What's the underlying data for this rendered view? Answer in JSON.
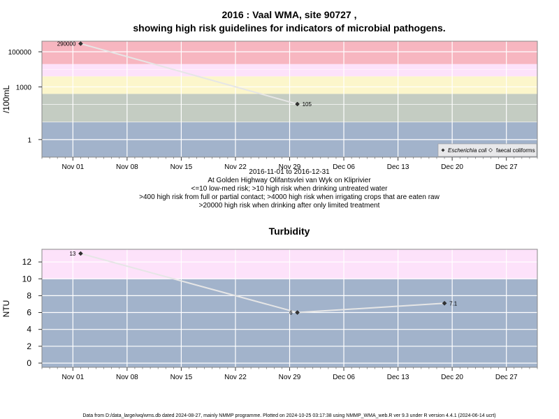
{
  "colors": {
    "red": "#F7B6C0",
    "pink": "#FDE2FA",
    "yellow": "#FCF6CB",
    "grey": "#C4CCC2",
    "blue": "#A2B3CB",
    "line": "#E6E6E6",
    "marker": "#333333"
  },
  "x_ticks": [
    "Nov 01",
    "Nov 08",
    "Nov 15",
    "Nov 22",
    "Nov 29",
    "Dec 06",
    "Dec 13",
    "Dec 20",
    "Dec 27"
  ],
  "top": {
    "title_line1": "2016 : Vaal WMA, site 90727 ,",
    "title_line2": "showing high risk guidelines for indicators of microbial pathogens.",
    "ylabel": "/100mL",
    "caption": [
      "2016-11-01 to 2016-12-31",
      "At Golden Highway Olifantsvlei van Wyk on Kliprivier",
      "<=10 low-med risk; >10 high risk when drinking untreated water",
      ">400 high risk from full or partial contact; >4000 high risk when irrigating crops that are eaten raw",
      ">20000 high risk when drinking after only limited treatment"
    ],
    "legend": {
      "ecoli": "Escherichia coli",
      "faecal": "faecal coliforms"
    }
  },
  "bottom": {
    "title": "Turbidity",
    "ylabel": "NTU"
  },
  "footer": "Data from D:/data_large/wq/wms.db dated 2024-08-27, mainly NMMP programme. Plotted on 2024-10-25 03:17:38 using NMMP_WMA_web.R ver 9.3 under R version 4.4.1 (2024-06-14 ucrt)",
  "chart_data": [
    {
      "type": "line",
      "title": "2016 : Vaal WMA, site 90727 , showing high risk guidelines for indicators of microbial pathogens.",
      "ylabel": "/100mL",
      "yscale": "log",
      "xlim": [
        "2016-10-28",
        "2016-12-31"
      ],
      "ylim": [
        0.1,
        400000
      ],
      "y_ticks": [
        1,
        1000,
        100000
      ],
      "y_tick_labels": [
        "1",
        "1000",
        "100000"
      ],
      "bands": [
        {
          "from": 0.1,
          "to": 10,
          "color": "blue"
        },
        {
          "from": 10,
          "to": 400,
          "color": "grey"
        },
        {
          "from": 400,
          "to": 4000,
          "color": "yellow"
        },
        {
          "from": 4000,
          "to": 20000,
          "color": "pink"
        },
        {
          "from": 20000,
          "to": 400000,
          "color": "red"
        }
      ],
      "series": [
        {
          "name": "Escherichia coli",
          "x": [
            "2016-11-02",
            "2016-11-30"
          ],
          "y": [
            290000,
            105
          ],
          "labels": [
            "290000",
            "105"
          ]
        }
      ],
      "legend_position": "bottom-right"
    },
    {
      "type": "line",
      "title": "Turbidity",
      "ylabel": "NTU",
      "xlim": [
        "2016-10-28",
        "2016-12-31"
      ],
      "ylim": [
        -0.5,
        13.5
      ],
      "y_ticks": [
        0,
        2,
        4,
        6,
        8,
        10,
        12
      ],
      "bands": [
        {
          "from": -0.5,
          "to": 10,
          "color": "blue"
        },
        {
          "from": 10,
          "to": 13.5,
          "color": "pink"
        }
      ],
      "series": [
        {
          "x": [
            "2016-11-02",
            "2016-11-30",
            "2016-12-19"
          ],
          "y": [
            13,
            6,
            7.1
          ],
          "labels": [
            "13",
            "6",
            "7.1"
          ]
        }
      ]
    }
  ]
}
